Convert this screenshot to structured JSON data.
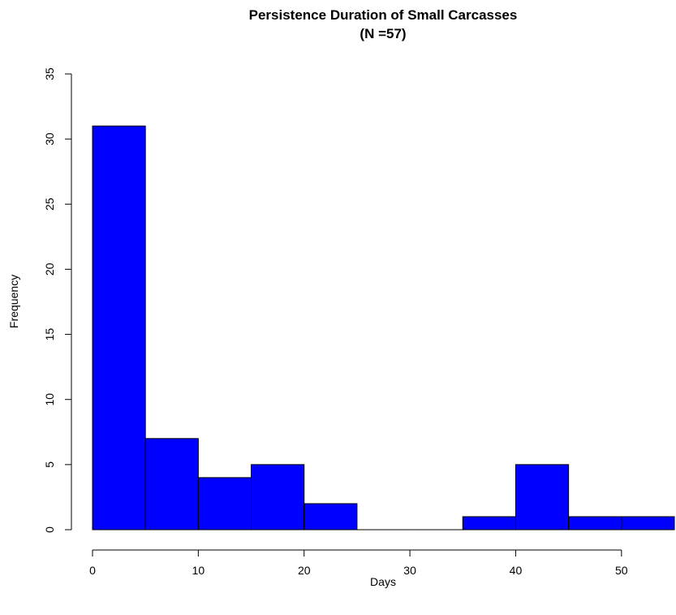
{
  "chart_data": {
    "type": "bar",
    "title": "Persistence Duration of Small Carcasses",
    "subtitle": "(N =57)",
    "xlabel": "Days",
    "ylabel": "Frequency",
    "bin_edges": [
      0,
      5,
      10,
      15,
      20,
      25,
      30,
      35,
      40,
      45,
      50,
      55
    ],
    "values": [
      31,
      7,
      4,
      5,
      2,
      0,
      0,
      1,
      5,
      1,
      1
    ],
    "xlim": [
      0,
      55
    ],
    "ylim": [
      0,
      35
    ],
    "x_ticks": [
      "0",
      "10",
      "20",
      "30",
      "40",
      "50"
    ],
    "y_ticks": [
      "0",
      "5",
      "10",
      "15",
      "20",
      "25",
      "30",
      "35"
    ],
    "bar_color": "#0000ff",
    "grid": false,
    "legend": "none"
  }
}
